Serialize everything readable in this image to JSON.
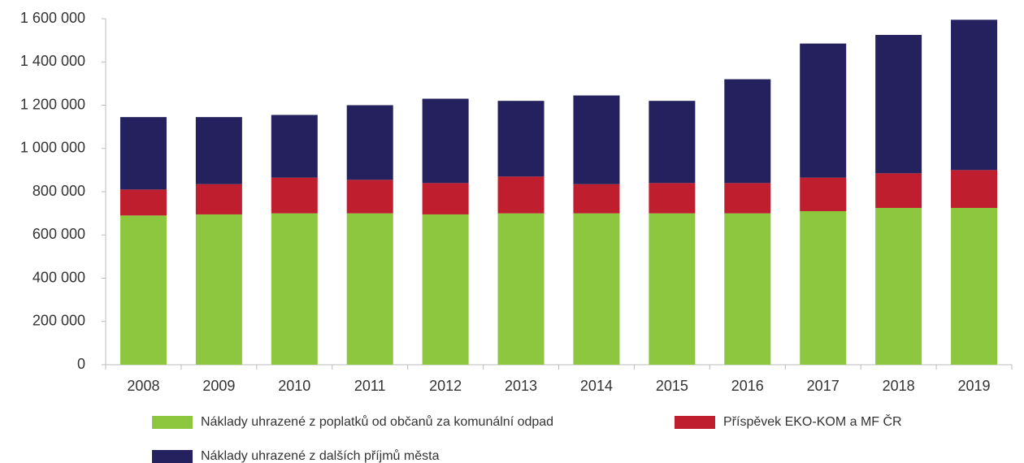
{
  "chart_data": {
    "type": "stacked_bar",
    "categories": [
      "2008",
      "2009",
      "2010",
      "2011",
      "2012",
      "2013",
      "2014",
      "2015",
      "2016",
      "2017",
      "2018",
      "2019"
    ],
    "series": [
      {
        "name": "Náklady uhrazené z poplatků od občanů za komunální odpad",
        "color": "#8dc63f",
        "values": [
          690000,
          695000,
          700000,
          700000,
          695000,
          700000,
          700000,
          700000,
          700000,
          710000,
          725000,
          725000
        ]
      },
      {
        "name": "Příspěvek EKO-KOM a MF ČR",
        "color": "#be1e2d",
        "values": [
          120000,
          140000,
          165000,
          155000,
          145000,
          170000,
          135000,
          140000,
          140000,
          155000,
          160000,
          175000
        ]
      },
      {
        "name": "Náklady uhrazené z dalších příjmů města",
        "color": "#24215e",
        "values": [
          335000,
          310000,
          290000,
          345000,
          390000,
          350000,
          410000,
          380000,
          480000,
          620000,
          640000,
          695000
        ]
      }
    ],
    "ylim": [
      0,
      1600000
    ],
    "yticks": [
      0,
      {
        "value": 200000,
        "label": "200 000"
      },
      {
        "value": 400000,
        "label": "400 000"
      },
      {
        "value": 600000,
        "label": "600 000"
      },
      {
        "value": 800000,
        "label": "800 000"
      },
      {
        "value": 1000000,
        "label": "1 000 000"
      },
      {
        "value": 1200000,
        "label": "1 200 000"
      },
      {
        "value": 1400000,
        "label": "1 400 000"
      },
      {
        "value": 1600000,
        "label": "1 600 000"
      }
    ]
  }
}
